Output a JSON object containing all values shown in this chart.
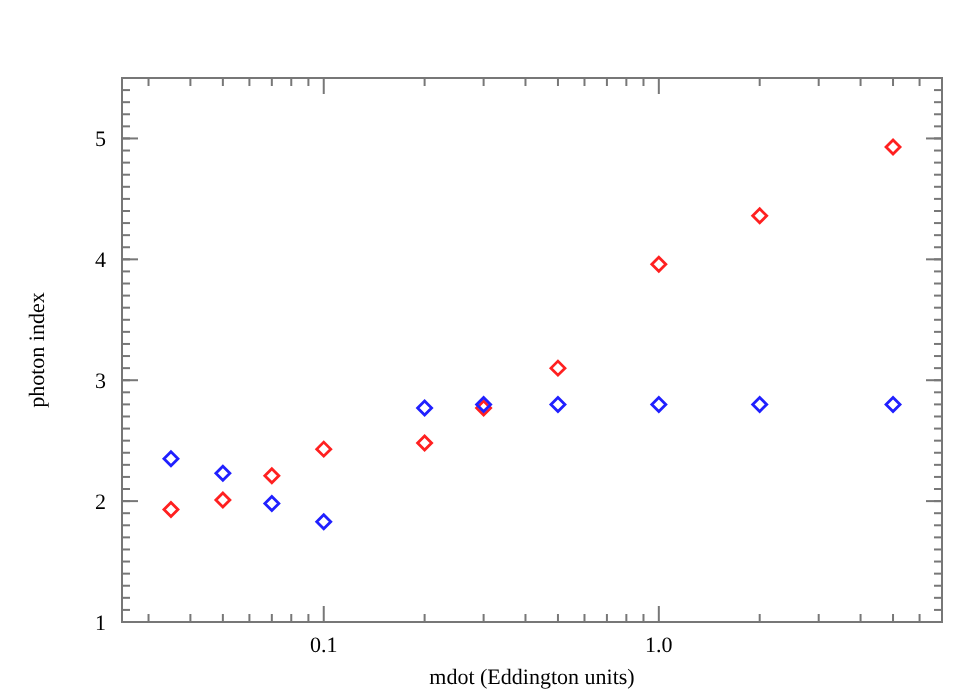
{
  "chart_data": {
    "type": "scatter",
    "xlabel": "mdot (Eddington units)",
    "ylabel": "photon index",
    "log": "x",
    "marker": "diamond",
    "xlim": [
      0.025,
      7
    ],
    "ylim": [
      1,
      5.5
    ],
    "xticks": [
      {
        "value": 0.03,
        "label": null
      },
      {
        "value": 0.04,
        "label": null
      },
      {
        "value": 0.05,
        "label": null
      },
      {
        "value": 0.06,
        "label": null
      },
      {
        "value": 0.07,
        "label": null
      },
      {
        "value": 0.08,
        "label": null
      },
      {
        "value": 0.09,
        "label": null
      },
      {
        "value": 0.1,
        "label": "0.1"
      },
      {
        "value": 0.2,
        "label": null
      },
      {
        "value": 0.3,
        "label": null
      },
      {
        "value": 0.4,
        "label": null
      },
      {
        "value": 0.5,
        "label": null
      },
      {
        "value": 0.6,
        "label": null
      },
      {
        "value": 0.7,
        "label": null
      },
      {
        "value": 0.8,
        "label": null
      },
      {
        "value": 0.9,
        "label": null
      },
      {
        "value": 1,
        "label": "1.0"
      },
      {
        "value": 2,
        "label": null
      },
      {
        "value": 3,
        "label": null
      },
      {
        "value": 4,
        "label": null
      },
      {
        "value": 5,
        "label": null
      },
      {
        "value": 6,
        "label": null
      },
      {
        "value": 7,
        "label": null
      }
    ],
    "yticks": [
      1,
      2,
      3,
      4,
      5
    ],
    "x": [
      0.035,
      0.05,
      0.07,
      0.1,
      0.2,
      0.3,
      0.5,
      1,
      2,
      5
    ],
    "series": [
      {
        "color": "#ff2020",
        "values": [
          1.93,
          2.01,
          2.21,
          2.43,
          2.48,
          2.77,
          3.1,
          3.96,
          4.36,
          4.93
        ]
      },
      {
        "color": "#2020ff",
        "values": [
          2.35,
          2.23,
          1.98,
          1.83,
          2.77,
          2.8,
          2.8,
          2.8,
          2.8,
          2.8
        ]
      }
    ]
  }
}
